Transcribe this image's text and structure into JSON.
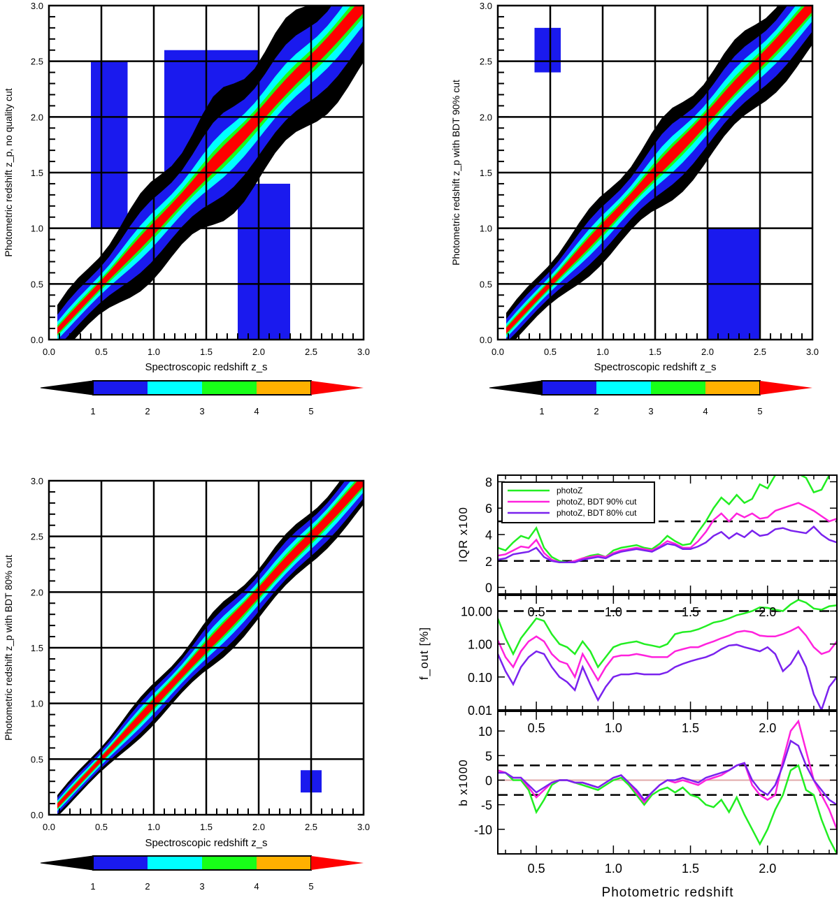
{
  "chart_data": [
    {
      "type": "heatmap",
      "id": "A",
      "xlabel": "Spectroscopic redshift z_s",
      "ylabel": "Photometric redshift z_p, no quality cut",
      "xlim": [
        0.0,
        3.0
      ],
      "ylim": [
        0.0,
        3.0
      ],
      "xticks": [
        "0.0",
        "0.5",
        "1.0",
        "1.5",
        "2.0",
        "2.5",
        "3.0"
      ],
      "yticks": [
        "0.0",
        "0.5",
        "1.0",
        "1.5",
        "2.0",
        "2.5",
        "3.0"
      ],
      "grid": true,
      "widths": [
        0.07,
        0.05,
        0.11,
        0.19,
        0.34,
        0.55
      ],
      "extra_bands": [
        [
          0.4,
          0.75,
          1.0,
          2.5
        ],
        [
          1.8,
          2.3,
          0.0,
          1.4
        ],
        [
          1.1,
          2.0,
          1.5,
          2.6
        ]
      ]
    },
    {
      "type": "heatmap",
      "id": "B",
      "xlabel": "Spectroscopic redshift z_s",
      "ylabel": "Photometric redshift z_p with BDT 90% cut",
      "xlim": [
        0.0,
        3.0
      ],
      "ylim": [
        0.0,
        3.0
      ],
      "xticks": [
        "0.0",
        "0.5",
        "1.0",
        "1.5",
        "2.0",
        "2.5",
        "3.0"
      ],
      "yticks": [
        "0.0",
        "0.5",
        "1.0",
        "1.5",
        "2.0",
        "2.5",
        "3.0"
      ],
      "grid": true,
      "widths": [
        0.06,
        0.045,
        0.09,
        0.15,
        0.25,
        0.38
      ],
      "extra_bands": [
        [
          0.35,
          0.6,
          2.4,
          2.8
        ],
        [
          2.0,
          2.5,
          0.0,
          1.0
        ]
      ]
    },
    {
      "type": "heatmap",
      "id": "C",
      "xlabel": "Spectroscopic redshift z_s",
      "ylabel": "Photometric redshift z_p with BDT 80% cut",
      "xlim": [
        0.0,
        3.0
      ],
      "ylim": [
        0.0,
        3.0
      ],
      "xticks": [
        "0.0",
        "0.5",
        "1.0",
        "1.5",
        "2.0",
        "2.5",
        "3.0"
      ],
      "yticks": [
        "0.0",
        "0.5",
        "1.0",
        "1.5",
        "2.0",
        "2.5",
        "3.0"
      ],
      "grid": true,
      "widths": [
        0.05,
        0.035,
        0.07,
        0.11,
        0.17,
        0.23
      ],
      "extra_bands": [
        [
          2.4,
          2.6,
          0.2,
          0.4
        ]
      ]
    },
    {
      "type": "line",
      "id": "IQR",
      "ylabel": "IQR x100",
      "xlim": [
        0.25,
        2.45
      ],
      "ylim": [
        -0.5,
        8.5
      ],
      "yticks": [
        "0",
        "2",
        "4",
        "6",
        "8"
      ],
      "ref_lines": [
        2,
        5
      ],
      "legend": [
        "photoZ",
        "photoZ, BDT 90% cut",
        "photoZ, BDT 80% cut"
      ],
      "x": [
        0.25,
        0.3,
        0.35,
        0.4,
        0.45,
        0.5,
        0.55,
        0.6,
        0.65,
        0.7,
        0.75,
        0.8,
        0.85,
        0.9,
        0.95,
        1.0,
        1.05,
        1.1,
        1.15,
        1.2,
        1.25,
        1.3,
        1.35,
        1.4,
        1.45,
        1.5,
        1.55,
        1.6,
        1.65,
        1.7,
        1.75,
        1.8,
        1.85,
        1.9,
        1.95,
        2.0,
        2.05,
        2.1,
        2.15,
        2.2,
        2.25,
        2.3,
        2.35,
        2.4,
        2.45
      ],
      "series": [
        {
          "name": "photoZ",
          "values": [
            3.0,
            2.8,
            3.4,
            3.9,
            3.7,
            4.5,
            3.0,
            2.3,
            2.0,
            1.9,
            2.0,
            2.2,
            2.4,
            2.5,
            2.3,
            2.8,
            3.0,
            3.1,
            3.2,
            3.0,
            2.9,
            3.3,
            3.9,
            3.5,
            3.2,
            3.3,
            4.2,
            5.0,
            6.0,
            6.8,
            6.3,
            7.0,
            6.4,
            6.7,
            7.8,
            7.5,
            8.5,
            9.3,
            9.5,
            8.6,
            8.3,
            7.2,
            7.4,
            8.5,
            9.0
          ]
        },
        {
          "name": "photoZ, BDT 90% cut",
          "values": [
            2.4,
            2.5,
            2.8,
            3.1,
            3.0,
            3.6,
            2.6,
            2.1,
            1.9,
            1.9,
            2.0,
            2.2,
            2.3,
            2.4,
            2.3,
            2.6,
            2.8,
            2.9,
            3.0,
            2.9,
            2.8,
            3.1,
            3.5,
            3.3,
            3.0,
            3.0,
            3.5,
            4.2,
            5.1,
            5.6,
            5.0,
            5.6,
            5.3,
            5.6,
            5.2,
            5.3,
            5.8,
            6.0,
            6.2,
            6.4,
            6.1,
            5.8,
            5.4,
            5.0,
            5.2
          ]
        },
        {
          "name": "photoZ, BDT 80% cut",
          "values": [
            2.1,
            2.2,
            2.5,
            2.6,
            2.7,
            3.0,
            2.3,
            2.0,
            1.9,
            1.9,
            1.9,
            2.1,
            2.2,
            2.3,
            2.2,
            2.5,
            2.7,
            2.8,
            2.9,
            2.8,
            2.7,
            3.0,
            3.3,
            3.2,
            2.9,
            2.9,
            3.1,
            3.4,
            3.9,
            4.2,
            3.7,
            4.1,
            3.8,
            4.3,
            3.9,
            4.0,
            4.4,
            4.5,
            4.3,
            4.2,
            4.1,
            4.6,
            4.0,
            3.6,
            3.4
          ]
        }
      ]
    },
    {
      "type": "line",
      "id": "FOUT",
      "ylabel": "f_out [%]",
      "yscale": "log",
      "xlim": [
        0.25,
        2.45
      ],
      "ylim": [
        0.01,
        30
      ],
      "yticks": [
        "0.01",
        "0.10",
        "1.00",
        "10.00"
      ],
      "ref_lines": [
        10
      ],
      "top_labels": [
        "0.5",
        "1.0",
        "1.5",
        "2.0"
      ],
      "x": [
        0.25,
        0.3,
        0.35,
        0.4,
        0.45,
        0.5,
        0.55,
        0.6,
        0.65,
        0.7,
        0.75,
        0.8,
        0.85,
        0.9,
        0.95,
        1.0,
        1.05,
        1.1,
        1.15,
        1.2,
        1.25,
        1.3,
        1.35,
        1.4,
        1.45,
        1.5,
        1.55,
        1.6,
        1.65,
        1.7,
        1.75,
        1.8,
        1.85,
        1.9,
        1.95,
        2.0,
        2.05,
        2.1,
        2.15,
        2.2,
        2.25,
        2.3,
        2.35,
        2.4,
        2.45
      ],
      "series": [
        {
          "name": "photoZ",
          "values": [
            6.0,
            1.5,
            0.5,
            1.5,
            3.0,
            6.0,
            5.0,
            2.0,
            1.0,
            0.8,
            0.5,
            1.2,
            0.6,
            0.2,
            0.4,
            0.8,
            1.0,
            1.1,
            1.2,
            1.0,
            0.9,
            0.8,
            1.0,
            2.0,
            2.3,
            2.4,
            2.8,
            3.5,
            4.5,
            5.0,
            6.0,
            7.5,
            8.5,
            10.0,
            13.0,
            12.5,
            11.0,
            10.0,
            16.0,
            22.0,
            18.0,
            12.0,
            11.0,
            14.0,
            15.0
          ]
        },
        {
          "name": "photoZ, BDT 90% cut",
          "values": [
            1.3,
            0.4,
            0.2,
            0.6,
            1.2,
            1.7,
            1.2,
            0.5,
            0.3,
            0.25,
            0.1,
            0.5,
            0.2,
            0.08,
            0.2,
            0.4,
            0.45,
            0.45,
            0.5,
            0.45,
            0.4,
            0.4,
            0.4,
            0.6,
            0.7,
            0.8,
            0.8,
            1.0,
            1.2,
            1.5,
            1.8,
            2.3,
            2.5,
            2.3,
            1.8,
            1.7,
            1.7,
            2.0,
            2.5,
            3.3,
            1.8,
            0.8,
            0.5,
            0.6,
            1.2
          ]
        },
        {
          "name": "photoZ, BDT 80% cut",
          "values": [
            0.5,
            0.15,
            0.06,
            0.2,
            0.4,
            0.6,
            0.5,
            0.2,
            0.1,
            0.07,
            0.04,
            0.2,
            0.06,
            0.02,
            0.05,
            0.1,
            0.12,
            0.12,
            0.13,
            0.12,
            0.12,
            0.12,
            0.14,
            0.2,
            0.25,
            0.3,
            0.35,
            0.4,
            0.5,
            0.7,
            0.9,
            0.95,
            0.8,
            0.7,
            0.6,
            0.8,
            0.5,
            0.15,
            0.25,
            0.6,
            0.2,
            0.03,
            0.01,
            0.05,
            0.1
          ]
        }
      ]
    },
    {
      "type": "line",
      "id": "BIAS",
      "ylabel": "b x1000",
      "xlabel": "Photometric redshift",
      "xlim": [
        0.25,
        2.45
      ],
      "ylim": [
        -15,
        14
      ],
      "yticks": [
        "-10",
        "-5",
        "0",
        "5",
        "10"
      ],
      "xticks": [
        "0.5",
        "1.0",
        "1.5",
        "2.0"
      ],
      "ref_lines": [
        3,
        -3
      ],
      "zero_line": 0,
      "top_labels": [
        "0.5",
        "1.0",
        "1.5",
        "2.0"
      ],
      "x": [
        0.25,
        0.3,
        0.35,
        0.4,
        0.45,
        0.5,
        0.55,
        0.6,
        0.65,
        0.7,
        0.75,
        0.8,
        0.85,
        0.9,
        0.95,
        1.0,
        1.05,
        1.1,
        1.15,
        1.2,
        1.25,
        1.3,
        1.35,
        1.4,
        1.45,
        1.5,
        1.55,
        1.6,
        1.65,
        1.7,
        1.75,
        1.8,
        1.85,
        1.9,
        1.95,
        2.0,
        2.05,
        2.1,
        2.15,
        2.2,
        2.25,
        2.3,
        2.35,
        2.4,
        2.45
      ],
      "series": [
        {
          "name": "photoZ",
          "values": [
            2,
            1.5,
            0,
            0,
            -2,
            -6.5,
            -4,
            -1,
            0,
            0,
            -0.5,
            -1,
            -1.5,
            -2,
            -1,
            0,
            0.5,
            -1,
            -3,
            -5,
            -3,
            -2,
            -1.5,
            -2.5,
            -1.5,
            -3,
            -3.5,
            -5,
            -5.5,
            -4,
            -6.5,
            -3.5,
            -7,
            -10,
            -13,
            -10,
            -6,
            -3,
            2,
            3,
            -2,
            -3,
            -8,
            -12,
            -15
          ]
        },
        {
          "name": "photoZ, BDT 90% cut",
          "values": [
            2,
            1.5,
            0.5,
            0.5,
            -1.5,
            -3.5,
            -2,
            -0.5,
            0,
            0,
            -0.5,
            -0.5,
            -1,
            -1.5,
            -0.5,
            0.5,
            1,
            -0.5,
            -2.5,
            -4.5,
            -2.5,
            -1,
            0,
            -0.5,
            0,
            -0.5,
            -1,
            0,
            0.5,
            1,
            2,
            3,
            3.5,
            -1,
            -3,
            -4,
            -3,
            4,
            10,
            12,
            6,
            0,
            -3,
            -6,
            -10
          ]
        },
        {
          "name": "photoZ, BDT 80% cut",
          "values": [
            1.5,
            1.5,
            0.5,
            0.5,
            -1,
            -2.5,
            -1.5,
            -0.5,
            0,
            0,
            -0.5,
            -0.5,
            -1,
            -1.5,
            -0.5,
            0.5,
            1,
            -0.5,
            -2,
            -4,
            -2.5,
            -1,
            0,
            0,
            0.5,
            0,
            -0.5,
            0.5,
            1,
            1.5,
            2,
            3,
            3.5,
            0,
            -2,
            -3,
            -1,
            3,
            8,
            7,
            3,
            0,
            -2,
            -4,
            -5
          ]
        }
      ]
    }
  ],
  "colorbar": {
    "labels": [
      "1",
      "2",
      "3",
      "4",
      "5"
    ],
    "colors": [
      "#000000",
      "#1a1aee",
      "#00ffff",
      "#18ff18",
      "#ffb000",
      "#ff0000"
    ]
  },
  "colors": {
    "photoZ": "#22ee22",
    "bdt90": "#ff22dd",
    "bdt80": "#7a22ee",
    "zero": "#e0a8a8"
  }
}
